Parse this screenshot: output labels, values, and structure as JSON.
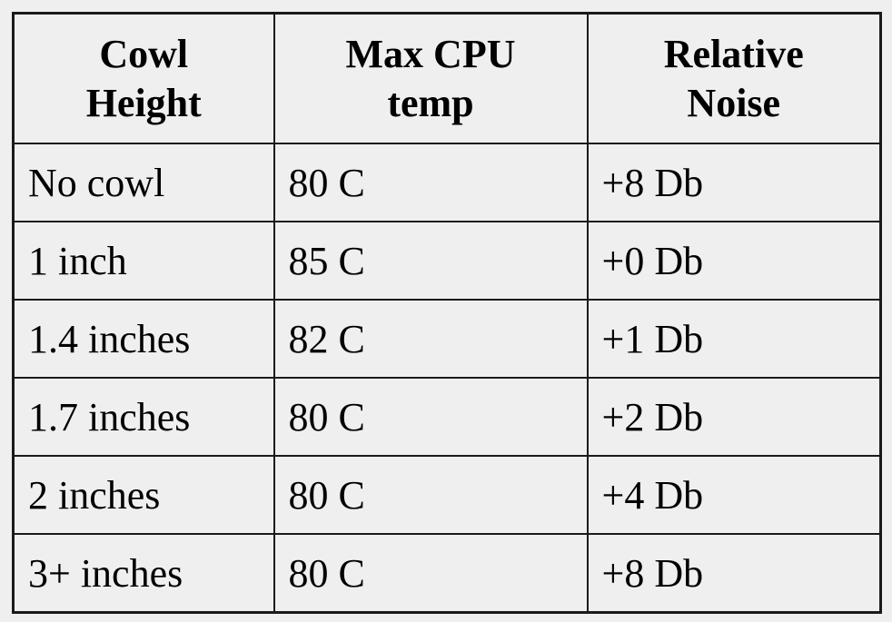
{
  "table": {
    "header": [
      [
        "Cowl",
        "Height"
      ],
      [
        "Max CPU",
        "temp"
      ],
      [
        "Relative",
        "Noise"
      ]
    ],
    "rows": [
      [
        "No cowl",
        "80 C",
        "+8 Db"
      ],
      [
        "1 inch",
        "85 C",
        "+0 Db"
      ],
      [
        "1.4 inches",
        "82 C",
        "+1 Db"
      ],
      [
        "1.7 inches",
        "80 C",
        "+2 Db"
      ],
      [
        "2 inches",
        "80 C",
        "+4 Db"
      ],
      [
        "3+ inches",
        "80 C",
        "+8 Db"
      ]
    ]
  }
}
